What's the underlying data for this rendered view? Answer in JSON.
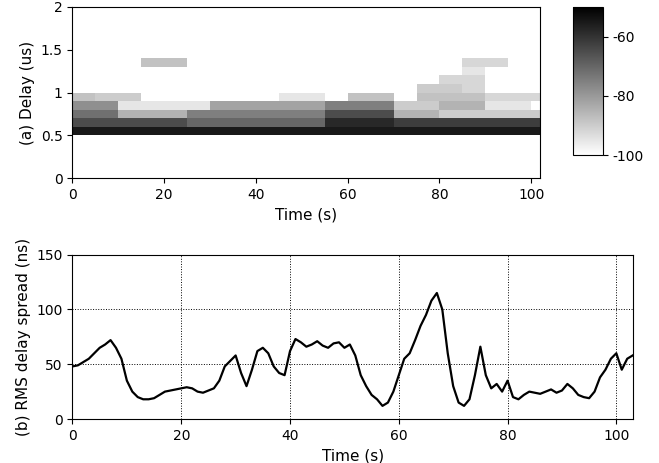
{
  "chart_data": [
    {
      "type": "heatmap",
      "y_label": "(a) Delay (us)",
      "x_label": "Time (s)",
      "x_edges": [
        0,
        5,
        10,
        15,
        20,
        25,
        30,
        35,
        40,
        45,
        50,
        55,
        60,
        65,
        70,
        75,
        80,
        85,
        90,
        95,
        100,
        105
      ],
      "y_edges": [
        0,
        0.1,
        0.2,
        0.3,
        0.4,
        0.5,
        0.6,
        0.7,
        0.8,
        0.9,
        1.0,
        1.1,
        1.2,
        1.3,
        1.4,
        1.5,
        1.6,
        1.7,
        1.8,
        1.9,
        2.0
      ],
      "cells": [
        [
          -100,
          -100,
          -100,
          -100,
          -100,
          -100,
          -100,
          -100,
          -100,
          -100,
          -100,
          -100,
          -100,
          -100,
          -100,
          -100,
          -100,
          -100,
          -100,
          -100,
          -100
        ],
        [
          -100,
          -100,
          -100,
          -100,
          -100,
          -100,
          -100,
          -100,
          -100,
          -100,
          -100,
          -100,
          -100,
          -100,
          -100,
          -100,
          -100,
          -100,
          -100,
          -100,
          -100
        ],
        [
          -100,
          -100,
          -100,
          -100,
          -100,
          -100,
          -100,
          -100,
          -100,
          -100,
          -100,
          -100,
          -100,
          -100,
          -100,
          -100,
          -100,
          -100,
          -100,
          -100,
          -100
        ],
        [
          -100,
          -100,
          -100,
          -100,
          -100,
          -100,
          -100,
          -100,
          -100,
          -100,
          -100,
          -100,
          -100,
          -100,
          -100,
          -100,
          -100,
          -100,
          -100,
          -100,
          -100
        ],
        [
          -100,
          -100,
          -100,
          -100,
          -100,
          -100,
          -100,
          -100,
          -100,
          -100,
          -100,
          -100,
          -100,
          -100,
          -100,
          -100,
          -100,
          -100,
          -100,
          -100,
          -100
        ],
        [
          -55,
          -55,
          -55,
          -55,
          -55,
          -55,
          -55,
          -55,
          -55,
          -55,
          -55,
          -55,
          -55,
          -55,
          -55,
          -55,
          -55,
          -55,
          -55,
          -55,
          -55
        ],
        [
          -65,
          -65,
          -65,
          -65,
          -65,
          -70,
          -70,
          -70,
          -70,
          -70,
          -70,
          -58,
          -58,
          -58,
          -62,
          -62,
          -62,
          -62,
          -62,
          -62,
          -62
        ],
        [
          -72,
          -72,
          -85,
          -85,
          -85,
          -75,
          -75,
          -75,
          -75,
          -75,
          -75,
          -65,
          -65,
          -65,
          -85,
          -85,
          -90,
          -90,
          -90,
          -90,
          -90
        ],
        [
          -78,
          -78,
          -95,
          -95,
          -95,
          -95,
          -82,
          -82,
          -82,
          -82,
          -82,
          -75,
          -75,
          -75,
          -90,
          -90,
          -85,
          -85,
          -95,
          -95,
          -100
        ],
        [
          -88,
          -90,
          -90,
          -100,
          -100,
          -100,
          -100,
          -100,
          -100,
          -95,
          -95,
          -100,
          -88,
          -88,
          -100,
          -88,
          -88,
          -88,
          -92,
          -92,
          -92
        ],
        [
          -100,
          -100,
          -100,
          -100,
          -100,
          -100,
          -100,
          -100,
          -100,
          -100,
          -100,
          -100,
          -100,
          -100,
          -100,
          -90,
          -90,
          -92,
          -100,
          -100,
          -100
        ],
        [
          -100,
          -100,
          -100,
          -100,
          -100,
          -100,
          -100,
          -100,
          -100,
          -100,
          -100,
          -100,
          -100,
          -100,
          -100,
          -100,
          -92,
          -92,
          -100,
          -100,
          -100
        ],
        [
          -100,
          -100,
          -100,
          -100,
          -100,
          -100,
          -100,
          -100,
          -100,
          -100,
          -100,
          -100,
          -100,
          -100,
          -100,
          -100,
          -100,
          -95,
          -100,
          -100,
          -100
        ],
        [
          -100,
          -100,
          -100,
          -88,
          -88,
          -100,
          -100,
          -100,
          -100,
          -100,
          -100,
          -100,
          -100,
          -100,
          -100,
          -100,
          -100,
          -92,
          -92,
          -100,
          -100
        ],
        [
          -100,
          -100,
          -100,
          -100,
          -100,
          -100,
          -100,
          -100,
          -100,
          -100,
          -100,
          -100,
          -100,
          -100,
          -100,
          -100,
          -100,
          -100,
          -100,
          -100,
          -100
        ],
        [
          -100,
          -100,
          -100,
          -100,
          -100,
          -100,
          -100,
          -100,
          -100,
          -100,
          -100,
          -100,
          -100,
          -100,
          -100,
          -100,
          -100,
          -100,
          -100,
          -100,
          -100
        ],
        [
          -100,
          -100,
          -100,
          -100,
          -100,
          -100,
          -100,
          -100,
          -100,
          -100,
          -100,
          -100,
          -100,
          -100,
          -100,
          -100,
          -100,
          -100,
          -100,
          -100,
          -100
        ],
        [
          -100,
          -100,
          -100,
          -100,
          -100,
          -100,
          -100,
          -100,
          -100,
          -100,
          -100,
          -100,
          -100,
          -100,
          -100,
          -100,
          -100,
          -100,
          -100,
          -100,
          -100
        ],
        [
          -100,
          -100,
          -100,
          -100,
          -100,
          -100,
          -100,
          -100,
          -100,
          -100,
          -100,
          -100,
          -100,
          -100,
          -100,
          -100,
          -100,
          -100,
          -100,
          -100,
          -100
        ],
        [
          -100,
          -100,
          -100,
          -100,
          -100,
          -100,
          -100,
          -100,
          -100,
          -100,
          -100,
          -100,
          -100,
          -100,
          -100,
          -100,
          -100,
          -100,
          -100,
          -100,
          -100
        ]
      ],
      "color_range": [
        -100,
        -50
      ],
      "color_ticks": [
        -60,
        -80,
        -100
      ],
      "xlim": [
        0,
        102
      ],
      "xticks": [
        0,
        20,
        40,
        60,
        80,
        100
      ],
      "ylim": [
        0,
        2
      ],
      "yticks": [
        0,
        0.5,
        1,
        1.5,
        2
      ],
      "grid": false
    },
    {
      "type": "line",
      "y_label": "(b) RMS delay spread (ns)",
      "x_label": "Time (s)",
      "color": "black",
      "x": [
        0,
        1,
        2,
        3,
        4,
        5,
        6,
        7,
        8,
        9,
        10,
        11,
        12,
        13,
        14,
        15,
        16,
        17,
        18,
        19,
        20,
        21,
        22,
        23,
        24,
        25,
        26,
        27,
        28,
        29,
        30,
        31,
        32,
        33,
        34,
        35,
        36,
        37,
        38,
        39,
        40,
        41,
        42,
        43,
        44,
        45,
        46,
        47,
        48,
        49,
        50,
        51,
        52,
        53,
        54,
        55,
        56,
        57,
        58,
        59,
        60,
        61,
        62,
        63,
        64,
        65,
        66,
        67,
        68,
        69,
        70,
        71,
        72,
        73,
        74,
        75,
        76,
        77,
        78,
        79,
        80,
        81,
        82,
        83,
        84,
        85,
        86,
        87,
        88,
        89,
        90,
        91,
        92,
        93,
        94,
        95,
        96,
        97,
        98,
        99,
        100,
        101,
        102,
        103
      ],
      "values": [
        48,
        49,
        52,
        55,
        60,
        65,
        68,
        72,
        65,
        55,
        35,
        25,
        20,
        18,
        18,
        19,
        22,
        25,
        26,
        27,
        28,
        29,
        28,
        25,
        24,
        26,
        28,
        35,
        48,
        53,
        58,
        42,
        30,
        45,
        62,
        65,
        60,
        48,
        42,
        40,
        62,
        73,
        70,
        66,
        68,
        71,
        67,
        65,
        69,
        70,
        65,
        68,
        58,
        40,
        30,
        22,
        18,
        12,
        15,
        25,
        40,
        55,
        60,
        72,
        85,
        95,
        108,
        115,
        100,
        60,
        30,
        15,
        12,
        18,
        40,
        66,
        40,
        28,
        32,
        25,
        35,
        20,
        18,
        22,
        25,
        24,
        23,
        25,
        27,
        24,
        26,
        32,
        28,
        22,
        20,
        19,
        25,
        38,
        45,
        55,
        60,
        45,
        55,
        58
      ],
      "xlim": [
        0,
        103
      ],
      "xticks": [
        0,
        20,
        40,
        60,
        80,
        100
      ],
      "ylim": [
        0,
        150
      ],
      "yticks": [
        0,
        50,
        100,
        150
      ],
      "grid": true
    }
  ]
}
